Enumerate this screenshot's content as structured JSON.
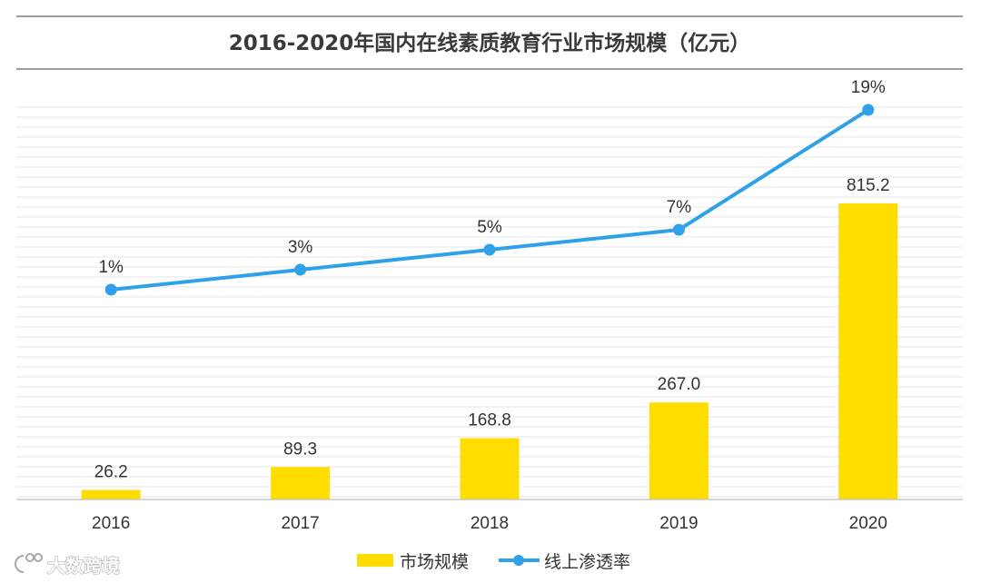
{
  "chart_data": {
    "type": "bar",
    "title": "2016-2020年国内在线素质教育行业市场规模（亿元）",
    "categories": [
      "2016",
      "2017",
      "2018",
      "2019",
      "2020"
    ],
    "series": [
      {
        "name": "市场规模",
        "type": "bar",
        "values": [
          26.2,
          89.3,
          168.8,
          267.0,
          815.2
        ],
        "labels": [
          "26.2",
          "89.3",
          "168.8",
          "267.0",
          "815.2"
        ],
        "color": "#FFDD00",
        "ylim": [
          0,
          1100
        ]
      },
      {
        "name": "线上渗透率",
        "type": "line",
        "values": [
          1,
          3,
          5,
          7,
          19
        ],
        "labels": [
          "1%",
          "3%",
          "5%",
          "7%",
          "19%"
        ],
        "color": "#2EA1E8",
        "ylim": [
          -20,
          20
        ]
      }
    ],
    "xlabel": "",
    "ylabel": "",
    "grid": true,
    "legend_position": "bottom-center"
  },
  "watermark": {
    "text": "大数跨境",
    "icon": "logo-icon"
  }
}
